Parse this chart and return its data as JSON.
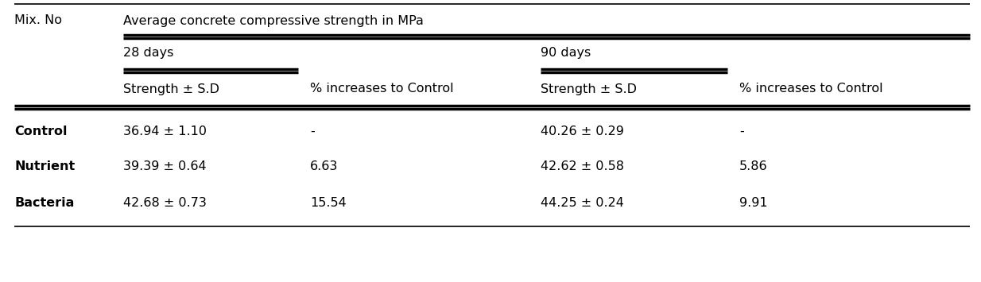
{
  "col0_header": "Mix. No",
  "main_header": "Average concrete compressive strength in MPa",
  "sub_headers": [
    "28 days",
    "90 days"
  ],
  "col_headers": [
    "Strength ± S.D",
    "% increases to Control",
    "Strength ± S.D",
    "% increases to Control"
  ],
  "rows": [
    {
      "mix": "Control",
      "s28": "36.94 ± 1.10",
      "p28": "-",
      "s90": "40.26 ± 0.29",
      "p90": "-"
    },
    {
      "mix": "Nutrient",
      "s28": "39.39 ± 0.64",
      "p28": "6.63",
      "s90": "42.62 ± 0.58",
      "p90": "5.86"
    },
    {
      "mix": "Bacteria",
      "s28": "42.68 ± 0.73",
      "p28": "15.54",
      "s90": "44.25 ± 0.24",
      "p90": "9.91"
    }
  ],
  "bg_color": "#ffffff",
  "text_color": "#000000",
  "line_color": "#000000",
  "font_size": 11.5
}
